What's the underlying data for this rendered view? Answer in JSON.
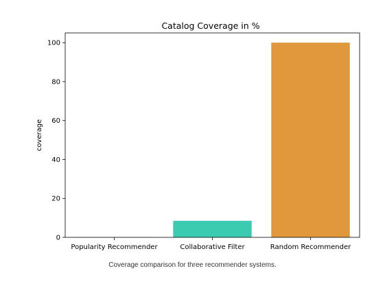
{
  "chart_data": {
    "type": "bar",
    "title": "Catalog Coverage in %",
    "xlabel": "",
    "ylabel": "coverage",
    "categories": [
      "Popularity Recommender",
      "Collaborative Filter",
      "Random Recommender"
    ],
    "values": [
      0.1,
      8.5,
      100
    ],
    "colors": [
      "#3274a1",
      "#3bcbb0",
      "#e1983c"
    ],
    "ylim": [
      0,
      105
    ],
    "yticks": [
      0,
      20,
      40,
      60,
      80,
      100
    ],
    "grid": false
  },
  "caption": "Coverage comparison for three recommender systems."
}
